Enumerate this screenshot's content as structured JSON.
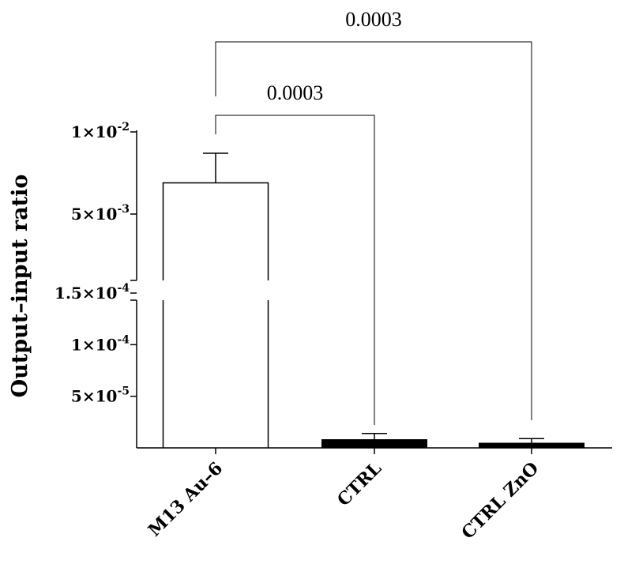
{
  "chart_data": {
    "type": "bar",
    "title": "",
    "xlabel": "",
    "ylabel": "Output–input ratio",
    "categories": [
      "M13 Au–6",
      "CTRL",
      "CTRL ZnO"
    ],
    "values": [
      0.0069,
      8e-06,
      4e-06
    ],
    "errors": [
      0.0018,
      6e-06,
      5e-06
    ],
    "bar_colors": [
      "#ffffff",
      "#000000",
      "#000000"
    ],
    "y_segments": [
      {
        "range": [
          0,
          0.00016
        ],
        "ticks": [
          {
            "value": 5e-05,
            "mant": "5×10",
            "exp": "-5"
          },
          {
            "value": 0.0001,
            "mant": "1×10",
            "exp": "-4"
          },
          {
            "value": 0.00015,
            "mant": "1.5×10",
            "exp": "-4"
          }
        ]
      },
      {
        "range": [
          0.0008,
          0.01
        ],
        "ticks": [
          {
            "value": 0.005,
            "mant": "5×10",
            "exp": "-3"
          },
          {
            "value": 0.01,
            "mant": "1×10",
            "exp": "-2"
          }
        ]
      }
    ],
    "comparisons": [
      {
        "from": "M13 Au–6",
        "to": "CTRL",
        "label": "0.0003"
      },
      {
        "from": "M13 Au–6",
        "to": "CTRL ZnO",
        "label": "0.0003"
      }
    ],
    "grid": false,
    "legend": "none"
  }
}
